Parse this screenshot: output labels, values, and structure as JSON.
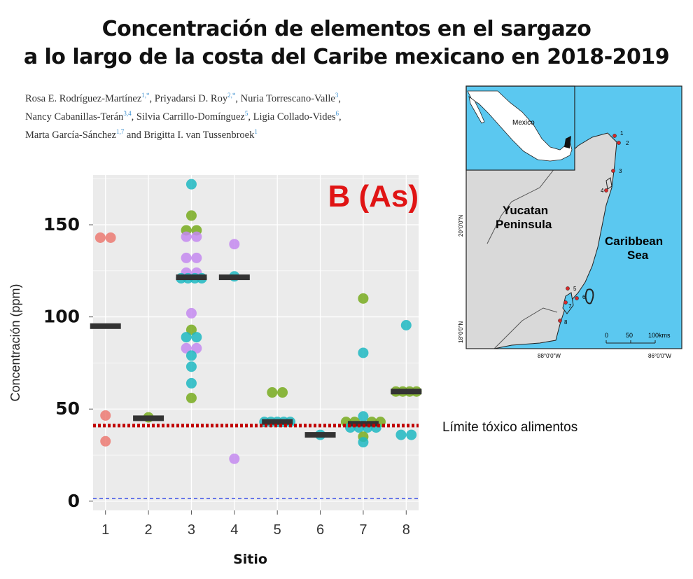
{
  "title": {
    "line1": "Concentración de elementos en el sargazo",
    "line2": "a lo largo de la costa del Caribe mexicano en 2018-2019"
  },
  "authors": [
    {
      "name": "Rosa E. Rodríguez-Martínez",
      "sup": "1,*",
      "sep": ",  "
    },
    {
      "name": "Priyadarsi D. Roy",
      "sup": "2,*",
      "sep": ",  "
    },
    {
      "name": "Nuria Torrescano-Valle",
      "sup": "3",
      "sep": ",\n"
    },
    {
      "name": "Nancy Cabanillas-Terán",
      "sup": "3,4",
      "sep": ",  "
    },
    {
      "name": "Silvia Carrillo-Domínguez",
      "sup": "5",
      "sep": ",  "
    },
    {
      "name": "Ligia Collado-Vides",
      "sup": "6",
      "sep": ",\n"
    },
    {
      "name": "Marta García-Sánchez",
      "sup": "1,7",
      "sep": " and  "
    },
    {
      "name": "Brigitta I. van Tussenbroek",
      "sup": "1",
      "sep": ""
    }
  ],
  "limit_label": "Límite tóxico alimentos",
  "colors": {
    "panel_bg": "#ebebeb",
    "grid": "#ffffff",
    "median": "#333333",
    "limit_line": "#c00000",
    "zero_line": "#3b4fe8",
    "panel_label": "#e01414",
    "series": {
      "red": "#ec7a72",
      "olive": "#78ab1e",
      "teal": "#1fb8c2",
      "purple": "#c48af0"
    },
    "map_sea": "#5bc8f0",
    "map_land": "#d9d9d9"
  },
  "chart_data": {
    "type": "scatter",
    "panel_label": "B (As)",
    "xlabel": "Sitio",
    "ylabel": "Concentración (ppm)",
    "categories": [
      "1",
      "2",
      "3",
      "4",
      "5",
      "6",
      "7",
      "8"
    ],
    "yticks": [
      0,
      50,
      100,
      150
    ],
    "ylim": [
      -5,
      177
    ],
    "grid": true,
    "reference_lines": [
      {
        "y": 41,
        "style": "dotted",
        "color": "#c00000"
      },
      {
        "y": 1.5,
        "style": "dashed",
        "color": "#3b4fe8"
      }
    ],
    "medians": [
      95,
      45,
      121.5,
      121.5,
      43,
      36,
      42,
      59.5
    ],
    "points": [
      {
        "site": 1,
        "y": 143,
        "dx": -0.12,
        "c": "red"
      },
      {
        "site": 1,
        "y": 143,
        "dx": 0.12,
        "c": "red"
      },
      {
        "site": 1,
        "y": 46.5,
        "dx": 0,
        "c": "red"
      },
      {
        "site": 1,
        "y": 32.5,
        "dx": 0,
        "c": "red"
      },
      {
        "site": 2,
        "y": 45.5,
        "dx": 0,
        "c": "olive"
      },
      {
        "site": 3,
        "y": 172,
        "dx": 0,
        "c": "teal"
      },
      {
        "site": 3,
        "y": 155,
        "dx": 0,
        "c": "olive"
      },
      {
        "site": 3,
        "y": 147,
        "dx": -0.12,
        "c": "olive"
      },
      {
        "site": 3,
        "y": 147,
        "dx": 0.12,
        "c": "olive"
      },
      {
        "site": 3,
        "y": 143.5,
        "dx": -0.12,
        "c": "purple"
      },
      {
        "site": 3,
        "y": 143.5,
        "dx": 0.12,
        "c": "purple"
      },
      {
        "site": 3,
        "y": 132,
        "dx": -0.12,
        "c": "purple"
      },
      {
        "site": 3,
        "y": 132,
        "dx": 0.12,
        "c": "purple"
      },
      {
        "site": 3,
        "y": 124,
        "dx": -0.12,
        "c": "purple"
      },
      {
        "site": 3,
        "y": 124,
        "dx": 0.12,
        "c": "purple"
      },
      {
        "site": 3,
        "y": 121,
        "dx": -0.24,
        "c": "teal"
      },
      {
        "site": 3,
        "y": 121,
        "dx": -0.08,
        "c": "teal"
      },
      {
        "site": 3,
        "y": 121,
        "dx": 0.08,
        "c": "teal"
      },
      {
        "site": 3,
        "y": 121,
        "dx": 0.24,
        "c": "teal"
      },
      {
        "site": 3,
        "y": 102,
        "dx": 0,
        "c": "purple"
      },
      {
        "site": 3,
        "y": 93,
        "dx": 0,
        "c": "olive"
      },
      {
        "site": 3,
        "y": 89,
        "dx": -0.12,
        "c": "teal"
      },
      {
        "site": 3,
        "y": 89,
        "dx": 0.12,
        "c": "teal"
      },
      {
        "site": 3,
        "y": 83,
        "dx": -0.12,
        "c": "purple"
      },
      {
        "site": 3,
        "y": 83,
        "dx": 0.12,
        "c": "purple"
      },
      {
        "site": 3,
        "y": 79,
        "dx": 0,
        "c": "teal"
      },
      {
        "site": 3,
        "y": 73,
        "dx": 0,
        "c": "teal"
      },
      {
        "site": 3,
        "y": 64,
        "dx": 0,
        "c": "teal"
      },
      {
        "site": 3,
        "y": 56,
        "dx": 0,
        "c": "olive"
      },
      {
        "site": 4,
        "y": 139.5,
        "dx": 0,
        "c": "purple"
      },
      {
        "site": 4,
        "y": 122,
        "dx": 0,
        "c": "teal"
      },
      {
        "site": 4,
        "y": 23,
        "dx": 0,
        "c": "purple"
      },
      {
        "site": 5,
        "y": 59,
        "dx": -0.12,
        "c": "olive"
      },
      {
        "site": 5,
        "y": 59,
        "dx": 0.12,
        "c": "olive"
      },
      {
        "site": 5,
        "y": 43,
        "dx": -0.3,
        "c": "teal"
      },
      {
        "site": 5,
        "y": 43,
        "dx": -0.15,
        "c": "teal"
      },
      {
        "site": 5,
        "y": 43,
        "dx": 0,
        "c": "teal"
      },
      {
        "site": 5,
        "y": 43,
        "dx": 0.15,
        "c": "teal"
      },
      {
        "site": 5,
        "y": 43,
        "dx": 0.3,
        "c": "teal"
      },
      {
        "site": 6,
        "y": 36,
        "dx": 0,
        "c": "teal"
      },
      {
        "site": 7,
        "y": 110,
        "dx": 0,
        "c": "olive"
      },
      {
        "site": 7,
        "y": 80.5,
        "dx": 0,
        "c": "teal"
      },
      {
        "site": 7,
        "y": 46,
        "dx": 0,
        "c": "teal"
      },
      {
        "site": 7,
        "y": 43,
        "dx": -0.4,
        "c": "olive"
      },
      {
        "site": 7,
        "y": 43,
        "dx": -0.2,
        "c": "olive"
      },
      {
        "site": 7,
        "y": 43,
        "dx": 0.2,
        "c": "olive"
      },
      {
        "site": 7,
        "y": 43,
        "dx": 0.4,
        "c": "olive"
      },
      {
        "site": 7,
        "y": 40,
        "dx": -0.3,
        "c": "teal"
      },
      {
        "site": 7,
        "y": 40,
        "dx": -0.1,
        "c": "teal"
      },
      {
        "site": 7,
        "y": 40,
        "dx": 0.1,
        "c": "teal"
      },
      {
        "site": 7,
        "y": 40,
        "dx": 0.3,
        "c": "teal"
      },
      {
        "site": 7,
        "y": 35,
        "dx": 0,
        "c": "olive"
      },
      {
        "site": 7,
        "y": 32,
        "dx": 0,
        "c": "teal"
      },
      {
        "site": 8,
        "y": 95.5,
        "dx": 0,
        "c": "teal"
      },
      {
        "site": 8,
        "y": 59.5,
        "dx": -0.24,
        "c": "olive"
      },
      {
        "site": 8,
        "y": 59.5,
        "dx": -0.08,
        "c": "olive"
      },
      {
        "site": 8,
        "y": 59.5,
        "dx": 0.08,
        "c": "olive"
      },
      {
        "site": 8,
        "y": 59.5,
        "dx": 0.24,
        "c": "olive"
      },
      {
        "site": 8,
        "y": 36,
        "dx": -0.12,
        "c": "teal"
      },
      {
        "site": 8,
        "y": 36,
        "dx": 0.12,
        "c": "teal"
      }
    ]
  },
  "map": {
    "labels": {
      "inset": "Mexico",
      "peninsula_line1": "Yucatan",
      "peninsula_line2": "Peninsula",
      "sea_line1": "Caribbean",
      "sea_line2": "Sea",
      "lat_top": "20°0'0\"N",
      "lat_bottom": "18°0'0\"N",
      "lon_left": "88°0'0\"W",
      "lon_right": "86°0'0\"W",
      "scale_0": "0",
      "scale_50": "50",
      "scale_100": "100kms"
    },
    "sites": [
      "1",
      "2",
      "3",
      "4",
      "5",
      "6",
      "7",
      "8"
    ]
  }
}
